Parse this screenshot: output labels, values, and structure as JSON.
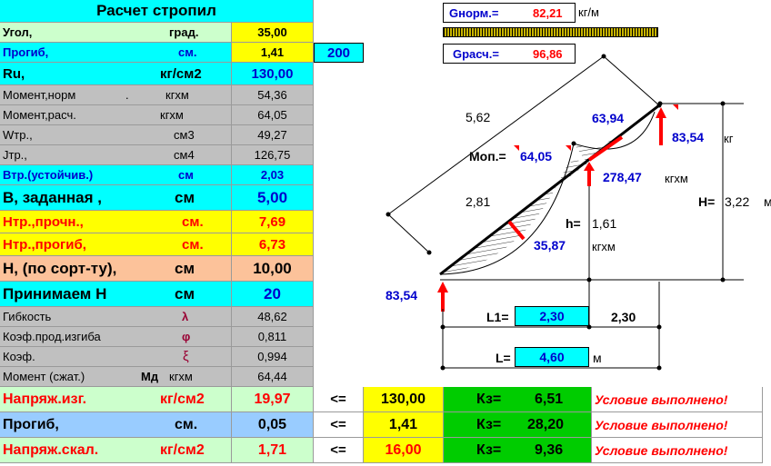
{
  "table": {
    "title": "Расчет стропил",
    "rows": [
      {
        "label": "Угол,",
        "unit": "град.",
        "value": "35,00"
      },
      {
        "label": "Прогиб,",
        "unit": "см.",
        "value": "1,41",
        "extra": "200"
      },
      {
        "label": "Ru,",
        "unit": "кг/см2",
        "value": "130,00"
      },
      {
        "label": "Момент,норм",
        "dot": ".",
        "unit": "кгхм",
        "value": "54,36"
      },
      {
        "label": "Момент,расч.",
        "unit": "кгхм",
        "value": "64,05"
      },
      {
        "label": "Wтр.,",
        "unit": "см3",
        "value": "49,27"
      },
      {
        "label": "Jтр.,",
        "unit": "см4",
        "value": "126,75"
      },
      {
        "label": "Втр.(устойчив.)",
        "unit": "см",
        "value": "2,03"
      },
      {
        "label": "В, заданная ,",
        "unit": "см",
        "value": "5,00"
      },
      {
        "label": "Нтр.,прочн.,",
        "unit": "см.",
        "value": "7,69"
      },
      {
        "label": "Нтр.,прогиб,",
        "unit": "см.",
        "value": "6,73"
      },
      {
        "label": "Н, (по сорт-ту),",
        "unit": "см",
        "value": "10,00"
      },
      {
        "label": "Принимаем Н",
        "unit": "см",
        "value": "20"
      },
      {
        "label": "Гибкость",
        "unit": "λ",
        "value": "48,62"
      },
      {
        "label": "Коэф.прод.изгиба",
        "unit": "φ",
        "value": "0,811"
      },
      {
        "label": "Коэф.",
        "unit": "ξ",
        "value": "0,994"
      },
      {
        "label": "Момент (сжат.)",
        "unit_bold": "Мд",
        "unit": "кгхм",
        "value": "64,44"
      }
    ],
    "checks": [
      {
        "label": "Напряж.изг.",
        "unit": "кг/см2",
        "value": "19,97",
        "op": "<=",
        "limit": "130,00",
        "kz_label": "Кз=",
        "kz": "6,51",
        "status": "Условие выполнено!"
      },
      {
        "label": "Прогиб,",
        "unit": "см.",
        "value": "0,05",
        "op": "<=",
        "limit": "1,41",
        "kz_label": "Кз=",
        "kz": "28,20",
        "status": "Условие выполнено!"
      },
      {
        "label": "Напряж.скал.",
        "unit": "кг/см2",
        "value": "1,71",
        "op": "<=",
        "limit": "16,00",
        "kz_label": "Кз=",
        "kz": "9,36",
        "status": "Условие выполнено!"
      }
    ]
  },
  "diagram": {
    "g_norm_label": "Gнорм.=",
    "g_norm_value": "82,21",
    "g_norm_unit": "кг/м",
    "g_calc_label": "Gрасч.=",
    "g_calc_value": "96,86",
    "len_full": "5,62",
    "len_half": "2,81",
    "moment_top": "63,94",
    "reaction_top": "83,54",
    "reaction_top_unit": "кг",
    "mop_label": "Моп.=",
    "mop_value": "64,05",
    "support_force": "278,47",
    "support_unit": "кгхм",
    "h_label": "H=",
    "h_value": "3,22",
    "h_unit": "м",
    "hh_label": "h=",
    "hh_value": "1,61",
    "span_moment": "35,87",
    "span_moment_unit": "кгхм",
    "reaction_bottom": "83,54",
    "l1_label": "L1=",
    "l1_value": "2,30",
    "l2_value": "2,30",
    "l_label": "L=",
    "l_value": "4,60",
    "l_unit": "м"
  }
}
